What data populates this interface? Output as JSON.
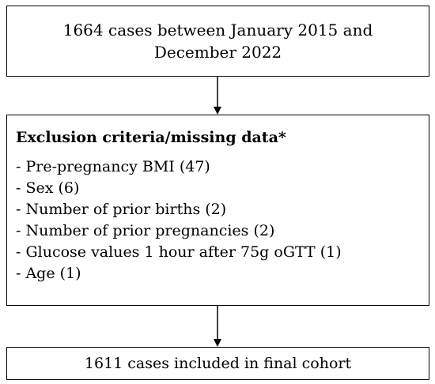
{
  "flow": {
    "top_box": {
      "text": "1664 cases between January 2015 and December 2022"
    },
    "exclusion_box": {
      "heading": "Exclusion criteria/missing data*",
      "items": [
        "- Pre-pregnancy BMI (47)",
        "- Sex (6)",
        "- Number of prior births (2)",
        "- Number of prior pregnancies (2)",
        "- Glucose values 1 hour after 75g oGTT (1)",
        "- Age (1)"
      ]
    },
    "bottom_box": {
      "text": "1611 cases included in final cohort"
    }
  },
  "colors": {
    "line": "#000000",
    "background": "#ffffff"
  }
}
